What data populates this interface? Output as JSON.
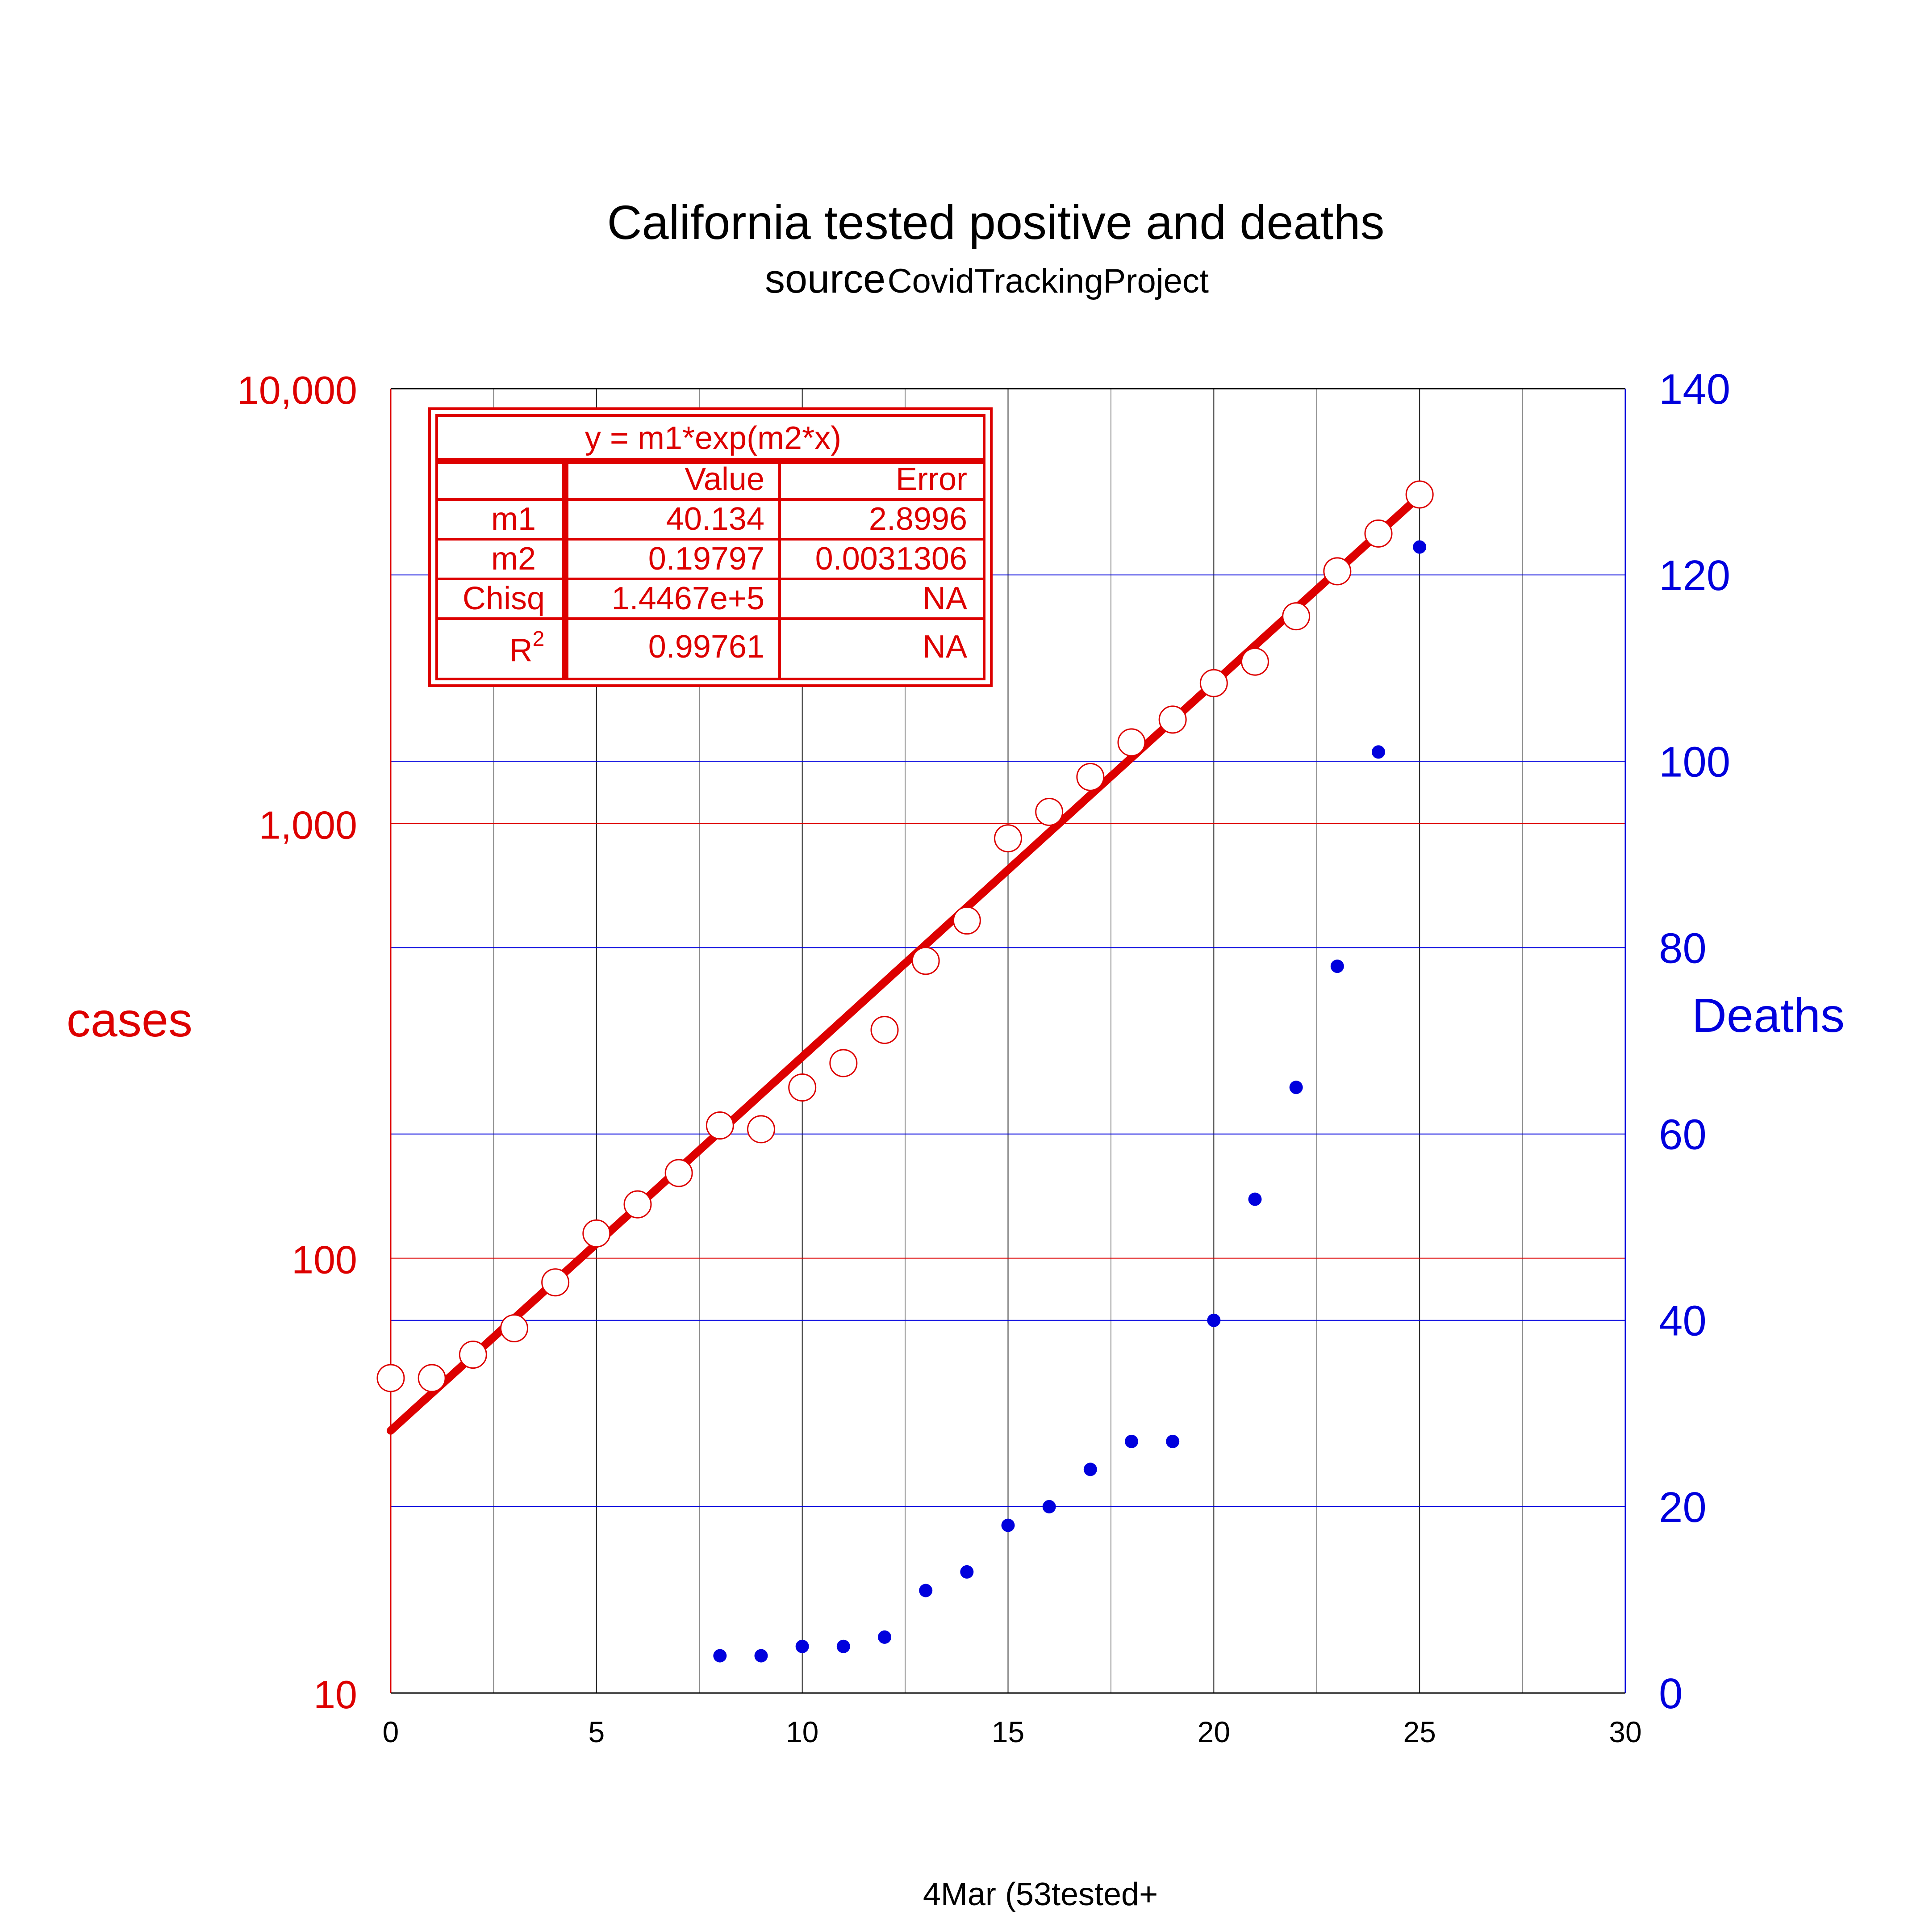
{
  "chart_data": {
    "type": "scatter",
    "title": "California  tested positive and deaths",
    "subtitle_word": "source",
    "subtitle_source": "CovidTrackingProject",
    "xlabel": "4Mar (53tested+",
    "ylabel_left": "cases",
    "ylabel_right": "Deaths",
    "xlim": [
      0,
      30
    ],
    "x_ticks": [
      0,
      5,
      10,
      15,
      20,
      25,
      30
    ],
    "x_tick_labels": [
      "0",
      "5",
      "10",
      "15",
      "20",
      "25",
      "30"
    ],
    "x_minor_ticks": [
      2.5,
      7.5,
      12.5,
      17.5,
      22.5,
      27.5
    ],
    "ylim_left": [
      10,
      10000
    ],
    "yscale_left": "log",
    "y_left_ticks": [
      10,
      100,
      1000,
      10000
    ],
    "y_left_tick_labels": [
      "10",
      "100",
      "1,000",
      "10,000"
    ],
    "ylim_right": [
      0,
      140
    ],
    "y_right_ticks": [
      0,
      20,
      40,
      60,
      80,
      100,
      120,
      140
    ],
    "y_right_tick_labels": [
      "0",
      "20",
      "40",
      "60",
      "80",
      "100",
      "120",
      "140"
    ],
    "grid": true,
    "colors": {
      "cases": "#dd0000",
      "deaths": "#0000dd",
      "axis": "#000000"
    },
    "series": [
      {
        "name": "cases",
        "axis": "left",
        "marker": "open-circle",
        "x": [
          0,
          1,
          2,
          3,
          4,
          5,
          6,
          7,
          8,
          9,
          10,
          11,
          12,
          13,
          14,
          15,
          16,
          17,
          18,
          19,
          20,
          21,
          22,
          23,
          24,
          25
        ],
        "y": [
          53,
          53,
          60,
          69,
          88,
          114,
          133,
          157,
          202,
          198,
          247,
          281,
          335,
          483,
          598,
          924,
          1063,
          1279,
          1536,
          1733,
          2102,
          2355,
          2995,
          3801,
          4643,
          5708
        ]
      },
      {
        "name": "Deaths",
        "axis": "right",
        "marker": "filled-dot",
        "x": [
          8,
          9,
          10,
          11,
          12,
          13,
          14,
          15,
          16,
          17,
          18,
          19,
          20,
          21,
          22,
          23,
          24,
          25
        ],
        "y": [
          4,
          4,
          5,
          5,
          6,
          11,
          13,
          18,
          20,
          24,
          27,
          27,
          40,
          53,
          65,
          78,
          101,
          123
        ]
      }
    ],
    "fit": {
      "model": "exponential",
      "axis": "left",
      "x_range": [
        0,
        25
      ],
      "m1": 40.134,
      "m2": 0.19797
    },
    "fit_table": {
      "header": "y = m1*exp(m2*x)",
      "columns": [
        "",
        "Value",
        "Error"
      ],
      "rows": [
        {
          "label": "m1",
          "value": "40.134",
          "error": "2.8996"
        },
        {
          "label": "m2",
          "value": "0.19797",
          "error": "0.0031306"
        },
        {
          "label": "Chisq",
          "value": "1.4467e+5",
          "error": "NA"
        },
        {
          "label": "R",
          "label_sup": "2",
          "value": "0.99761",
          "error": "NA"
        }
      ]
    }
  }
}
